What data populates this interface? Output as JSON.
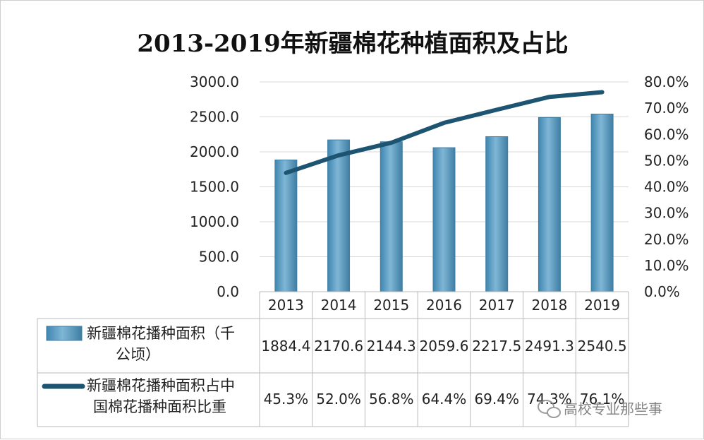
{
  "chart_data": {
    "type": "bar",
    "title": "2013-2019年新疆棉花种植面积及占比",
    "categories": [
      "2013",
      "2014",
      "2015",
      "2016",
      "2017",
      "2018",
      "2019"
    ],
    "series": [
      {
        "name": "新疆棉花播种面积（千公顷）",
        "type": "bar",
        "axis": "left",
        "values": [
          1884.4,
          2170.6,
          2144.3,
          2059.6,
          2217.5,
          2491.3,
          2540.5
        ],
        "labels": [
          "1884.4",
          "2170.6",
          "2144.3",
          "2059.6",
          "2217.5",
          "2491.3",
          "2540.5"
        ],
        "color": "#5b9cc2"
      },
      {
        "name": "新疆棉花播种面积占中国棉花播种面积比重",
        "type": "line",
        "axis": "right",
        "values": [
          45.3,
          52.0,
          56.8,
          64.4,
          69.4,
          74.3,
          76.1
        ],
        "labels": [
          "45.3%",
          "52.0%",
          "56.8%",
          "64.4%",
          "69.4%",
          "74.3%",
          "76.1%"
        ],
        "color": "#1d5472"
      }
    ],
    "y_left": {
      "ylim": [
        0,
        3000
      ],
      "ticks": [
        "0.0",
        "500.0",
        "1000.0",
        "1500.0",
        "2000.0",
        "2500.0",
        "3000.0"
      ]
    },
    "y_right": {
      "ylim": [
        0,
        80
      ],
      "ticks": [
        "0.0%",
        "10.0%",
        "20.0%",
        "30.0%",
        "40.0%",
        "50.0%",
        "60.0%",
        "70.0%",
        "80.0%"
      ]
    },
    "grid": true,
    "legend": "data table below chart"
  },
  "legend_text": {
    "bar_line1": "新疆棉花播种面积（千",
    "bar_line2": "公顷）",
    "line_line1": "新疆棉花播种面积占中",
    "line_line2": "国棉花播种面积比重"
  },
  "watermark": "高校专业那些事",
  "colors": {
    "bar": "#5b9cc2",
    "bar_edge": "#3f7ea3",
    "line": "#1d5472",
    "grid": "#d9d9d9",
    "axis_text": "#222222"
  }
}
